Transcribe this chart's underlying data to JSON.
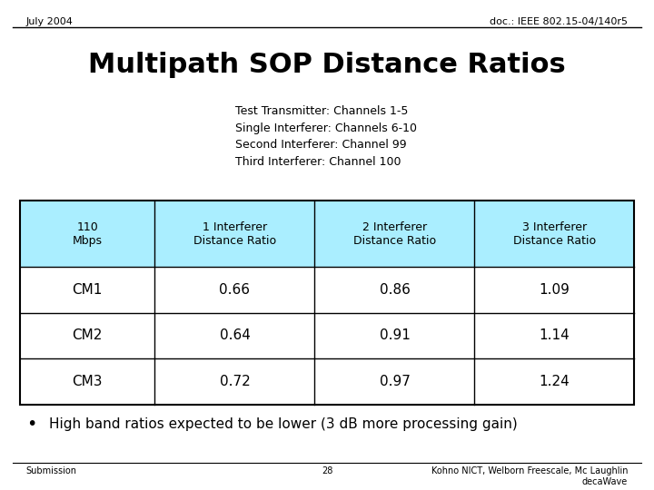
{
  "title": "Multipath SOP Distance Ratios",
  "header_left": "July 2004",
  "header_right": "doc.: IEEE 802.15-04/140r5",
  "subtitle_lines": [
    "Test Transmitter: Channels 1-5",
    "Single Interferer: Channels 6-10",
    "Second Interferer: Channel 99",
    "Third Interferer: Channel 100"
  ],
  "table_col_headers": [
    "110\nMbps",
    "1 Interferer\nDistance Ratio",
    "2 Interferer\nDistance Ratio",
    "3 Interferer\nDistance Ratio"
  ],
  "table_rows": [
    [
      "CM1",
      "0.66",
      "0.86",
      "1.09"
    ],
    [
      "CM2",
      "0.64",
      "0.91",
      "1.14"
    ],
    [
      "CM3",
      "0.72",
      "0.97",
      "1.24"
    ]
  ],
  "header_bg_color": "#aaeeff",
  "bullet_text": "High band ratios expected to be lower (3 dB more processing gain)",
  "footer_left": "Submission",
  "footer_center": "28",
  "footer_right": "Kohno NICT, Welborn Freescale, Mc Laughlin\ndecaWave",
  "bg_color": "#ffffff",
  "text_color": "#000000",
  "table_border_color": "#000000",
  "header_line_color": "#000000"
}
